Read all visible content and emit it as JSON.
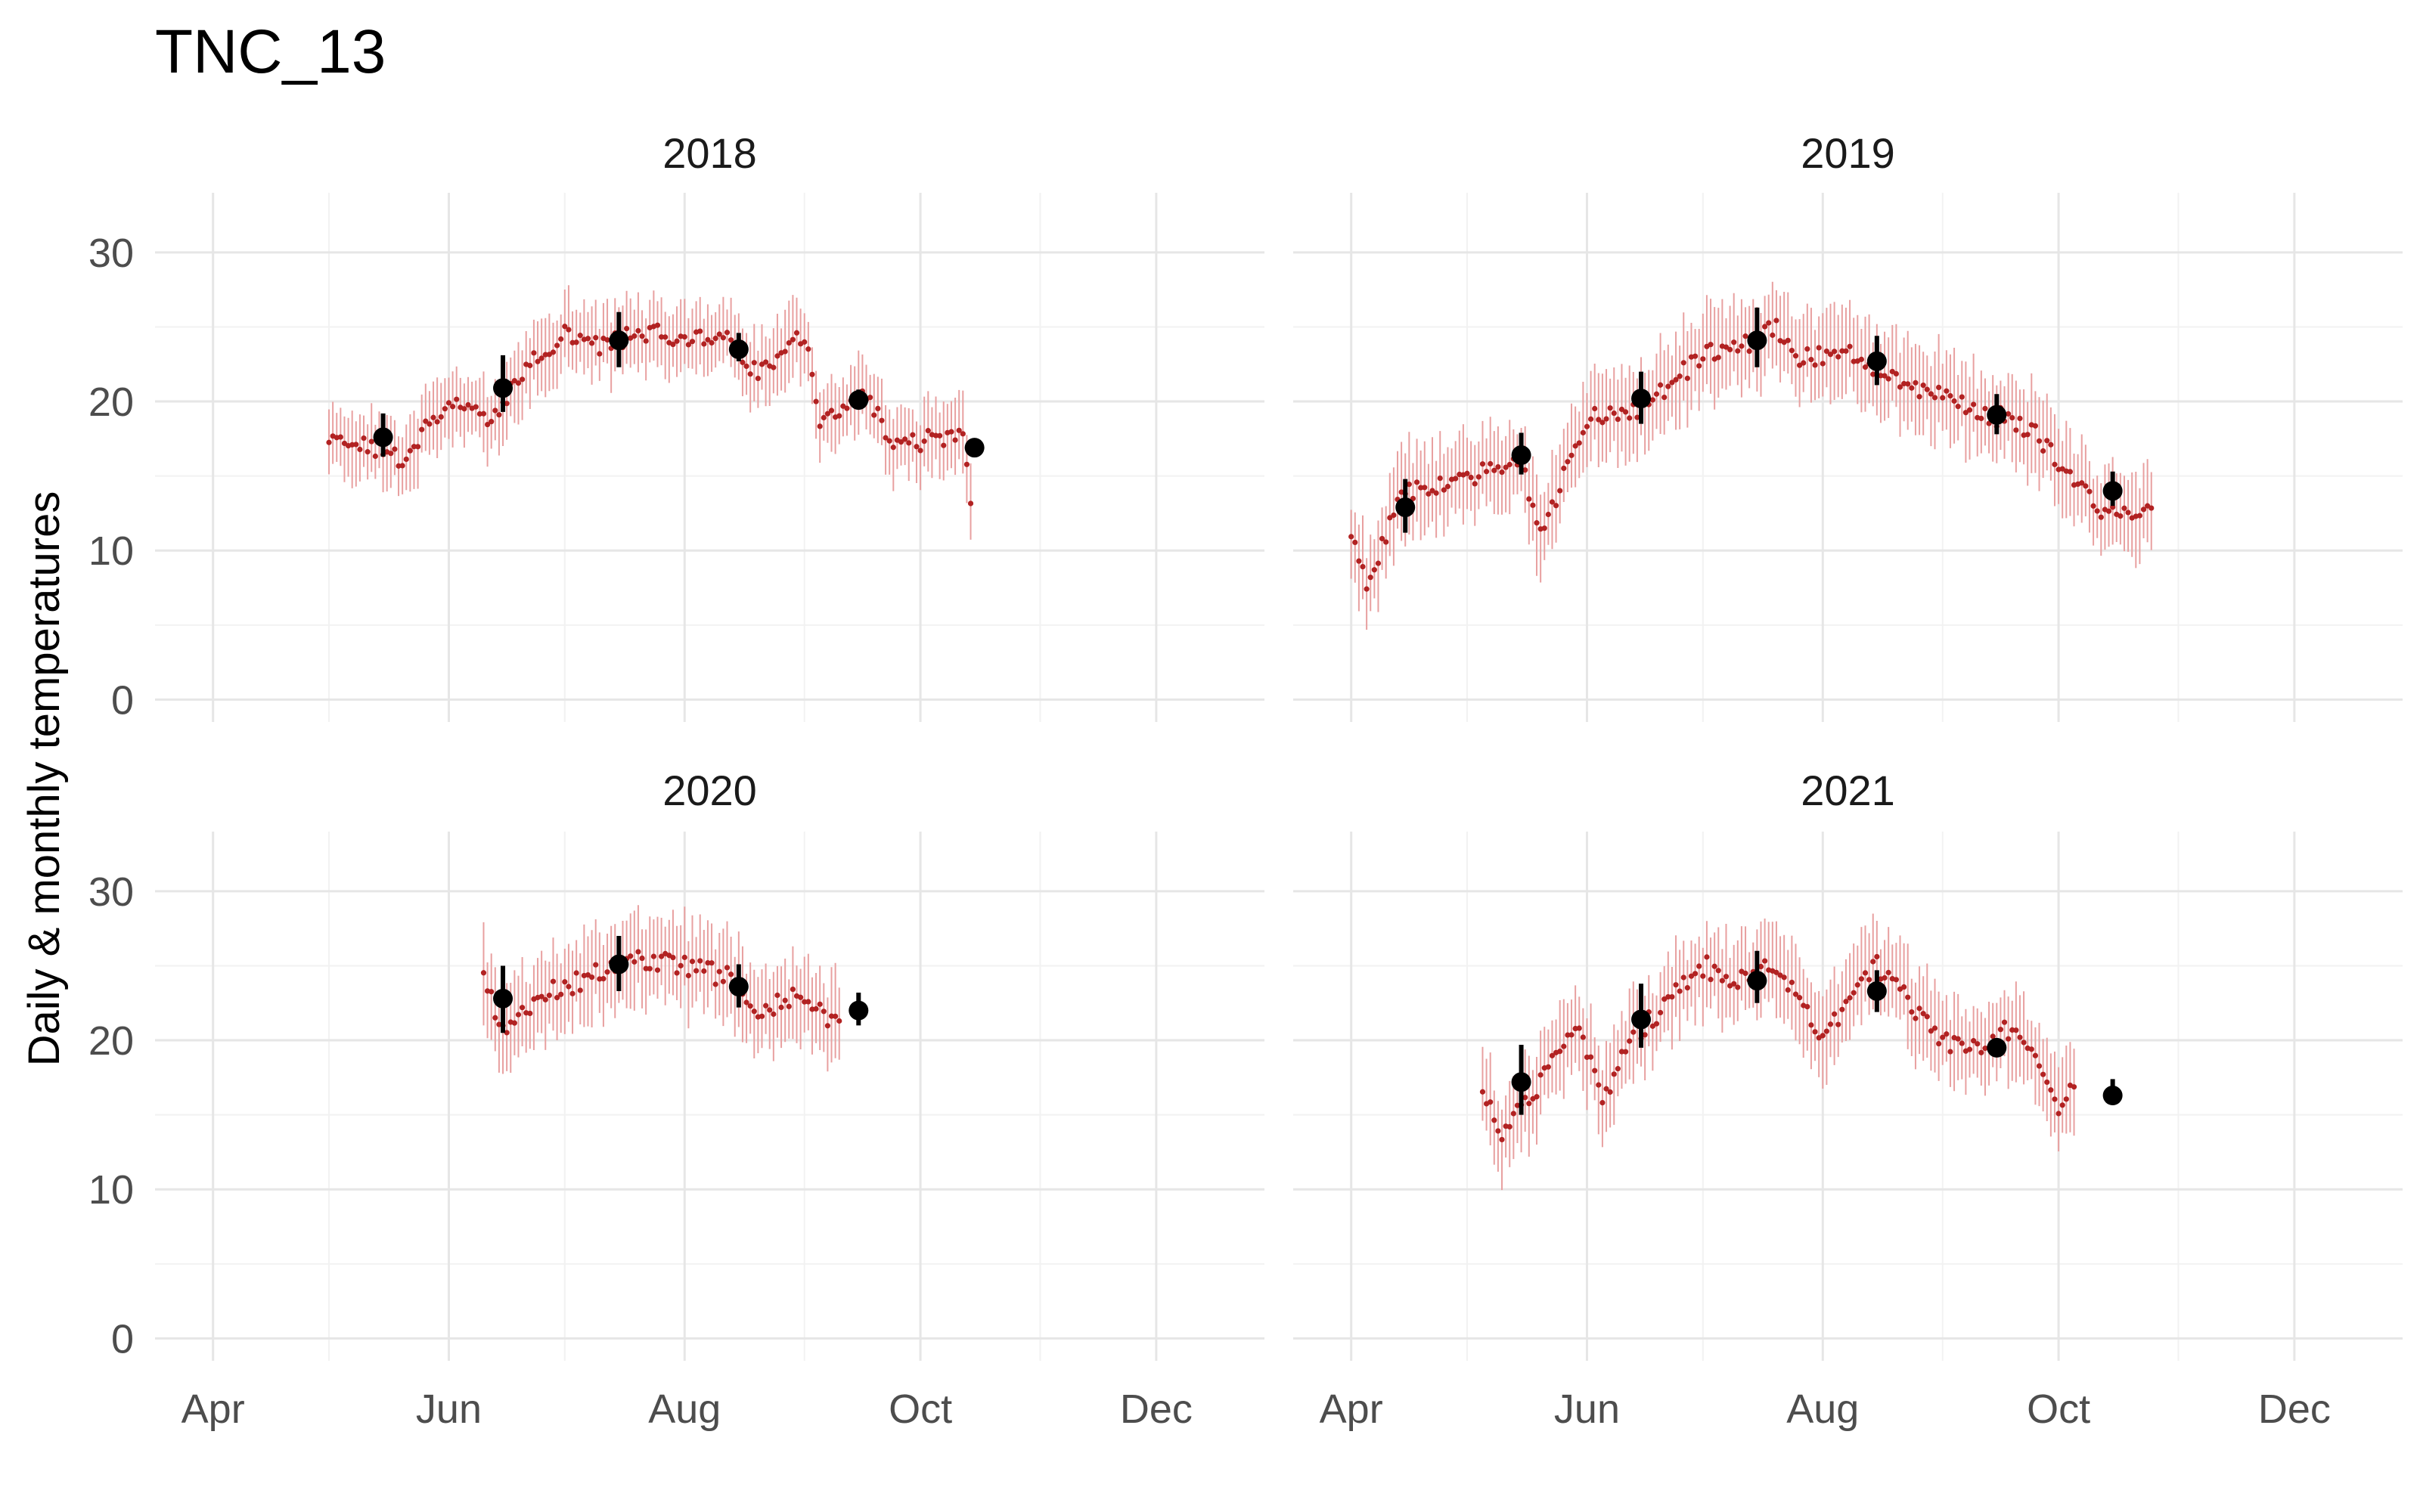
{
  "chart_data": {
    "type": "scatter",
    "title": "TNC_13",
    "ylabel": "Daily & monthly temperatures",
    "xlabel": "",
    "ylim": [
      -1.5,
      34
    ],
    "xlim": [
      "2000-03-17",
      "2000-12-29"
    ],
    "x_ticks": [
      {
        "label": "Apr",
        "date": "2000-04-01"
      },
      {
        "label": "Jun",
        "date": "2000-06-01"
      },
      {
        "label": "Aug",
        "date": "2000-08-01"
      },
      {
        "label": "Oct",
        "date": "2000-10-01"
      },
      {
        "label": "Dec",
        "date": "2000-12-01"
      }
    ],
    "x_minor_ticks": [
      "2000-05-01",
      "2000-07-01",
      "2000-09-01",
      "2000-11-01"
    ],
    "y_ticks": [
      {
        "label": "0",
        "value": 0
      },
      {
        "label": "10",
        "value": 10
      },
      {
        "label": "20",
        "value": 20
      },
      {
        "label": "30",
        "value": 30
      }
    ],
    "y_minor_ticks": [
      5,
      15,
      25
    ],
    "grid": true,
    "legend": "none",
    "colors": {
      "daily_point": "#b22222",
      "daily_range": "#e8a0a0",
      "monthly": "#000000",
      "grid_major": "#e6e6e6",
      "grid_minor": "#f2f2f2"
    },
    "panels": [
      {
        "label": "2018",
        "daily_knots": [
          [
            "2000-05-01",
            17.0
          ],
          [
            "2000-05-10",
            17.0
          ],
          [
            "2000-05-20",
            16.0
          ],
          [
            "2000-06-01",
            20.0
          ],
          [
            "2000-06-12",
            19.0
          ],
          [
            "2000-06-20",
            22.0
          ],
          [
            "2000-07-01",
            24.5
          ],
          [
            "2000-07-10",
            23.5
          ],
          [
            "2000-07-20",
            24.5
          ],
          [
            "2000-08-01",
            24.5
          ],
          [
            "2000-08-10",
            24.5
          ],
          [
            "2000-08-20",
            22.0
          ],
          [
            "2000-09-01",
            24.5
          ],
          [
            "2000-09-05",
            18.0
          ],
          [
            "2000-09-15",
            21.0
          ],
          [
            "2000-09-25",
            17.0
          ],
          [
            "2000-10-05",
            17.5
          ],
          [
            "2000-10-12",
            18.0
          ],
          [
            "2000-10-14",
            13.5
          ]
        ],
        "daily_range": 2.5,
        "monthly": [
          {
            "date": "2000-05-15",
            "mean": 17.6,
            "low": 16.3,
            "high": 19.2
          },
          {
            "date": "2000-06-15",
            "mean": 20.9,
            "low": 19.3,
            "high": 23.1
          },
          {
            "date": "2000-07-15",
            "mean": 24.1,
            "low": 22.3,
            "high": 26.0
          },
          {
            "date": "2000-08-15",
            "mean": 23.5,
            "low": 22.7,
            "high": 24.6
          },
          {
            "date": "2000-09-15",
            "mean": 20.1,
            "low": 19.5,
            "high": 20.8
          },
          {
            "date": "2000-10-15",
            "mean": 16.9,
            "low": 16.6,
            "high": 17.2
          }
        ]
      },
      {
        "label": "2019",
        "daily_knots": [
          [
            "2000-04-01",
            11.0
          ],
          [
            "2000-04-05",
            8.0
          ],
          [
            "2000-04-15",
            14.0
          ],
          [
            "2000-05-01",
            15.0
          ],
          [
            "2000-05-15",
            16.0
          ],
          [
            "2000-05-20",
            11.0
          ],
          [
            "2000-06-01",
            19.0
          ],
          [
            "2000-06-15",
            19.5
          ],
          [
            "2000-07-01",
            23.0
          ],
          [
            "2000-07-15",
            24.0
          ],
          [
            "2000-07-20",
            25.0
          ],
          [
            "2000-07-25",
            23.0
          ],
          [
            "2000-08-10",
            23.0
          ],
          [
            "2000-08-25",
            21.0
          ],
          [
            "2000-09-10",
            19.5
          ],
          [
            "2000-09-25",
            18.0
          ],
          [
            "2000-10-01",
            16.0
          ],
          [
            "2000-10-10",
            13.0
          ],
          [
            "2000-10-25",
            12.5
          ]
        ],
        "daily_range": 3.0,
        "monthly": [
          {
            "date": "2000-04-15",
            "mean": 12.9,
            "low": 11.2,
            "high": 14.8
          },
          {
            "date": "2000-05-15",
            "mean": 16.4,
            "low": 15.1,
            "high": 17.9
          },
          {
            "date": "2000-06-15",
            "mean": 20.2,
            "low": 18.5,
            "high": 22.0
          },
          {
            "date": "2000-07-15",
            "mean": 24.1,
            "low": 22.3,
            "high": 26.3
          },
          {
            "date": "2000-08-15",
            "mean": 22.7,
            "low": 21.1,
            "high": 24.4
          },
          {
            "date": "2000-09-15",
            "mean": 19.1,
            "low": 17.8,
            "high": 20.5
          },
          {
            "date": "2000-10-15",
            "mean": 14.0,
            "low": 13.0,
            "high": 15.3
          }
        ]
      },
      {
        "label": "2020",
        "daily_knots": [
          [
            "2000-06-10",
            24.0
          ],
          [
            "2000-06-15",
            21.0
          ],
          [
            "2000-06-25",
            23.0
          ],
          [
            "2000-07-05",
            24.0
          ],
          [
            "2000-07-20",
            25.5
          ],
          [
            "2000-08-01",
            25.0
          ],
          [
            "2000-08-15",
            24.0
          ],
          [
            "2000-08-20",
            22.0
          ],
          [
            "2000-09-01",
            23.0
          ],
          [
            "2000-09-10",
            21.0
          ]
        ],
        "daily_range": 3.0,
        "monthly": [
          {
            "date": "2000-06-15",
            "mean": 22.8,
            "low": 20.5,
            "high": 25.0
          },
          {
            "date": "2000-07-15",
            "mean": 25.1,
            "low": 23.3,
            "high": 27.0
          },
          {
            "date": "2000-08-15",
            "mean": 23.6,
            "low": 22.2,
            "high": 25.1
          },
          {
            "date": "2000-09-15",
            "mean": 22.0,
            "low": 21.0,
            "high": 23.2
          }
        ]
      },
      {
        "label": "2021",
        "daily_knots": [
          [
            "2000-05-05",
            17.0
          ],
          [
            "2000-05-10",
            14.0
          ],
          [
            "2000-05-20",
            17.0
          ],
          [
            "2000-05-30",
            21.5
          ],
          [
            "2000-06-05",
            15.5
          ],
          [
            "2000-06-12",
            20.0
          ],
          [
            "2000-06-20",
            22.0
          ],
          [
            "2000-07-01",
            25.0
          ],
          [
            "2000-07-10",
            24.0
          ],
          [
            "2000-07-20",
            25.0
          ],
          [
            "2000-08-01",
            20.0
          ],
          [
            "2000-08-15",
            25.0
          ],
          [
            "2000-09-01",
            20.0
          ],
          [
            "2000-09-10",
            19.5
          ],
          [
            "2000-09-20",
            21.0
          ],
          [
            "2000-10-01",
            15.5
          ],
          [
            "2000-10-05",
            17.0
          ]
        ],
        "daily_range": 3.0,
        "monthly": [
          {
            "date": "2000-05-15",
            "mean": 17.2,
            "low": 15.0,
            "high": 19.7
          },
          {
            "date": "2000-06-15",
            "mean": 21.4,
            "low": 19.5,
            "high": 23.8
          },
          {
            "date": "2000-07-15",
            "mean": 24.0,
            "low": 22.5,
            "high": 26.0
          },
          {
            "date": "2000-08-15",
            "mean": 23.3,
            "low": 21.9,
            "high": 24.7
          },
          {
            "date": "2000-09-15",
            "mean": 19.5,
            "low": 19.0,
            "high": 20.0
          },
          {
            "date": "2000-10-15",
            "mean": 16.3,
            "low": 15.7,
            "high": 17.4
          }
        ]
      }
    ]
  }
}
